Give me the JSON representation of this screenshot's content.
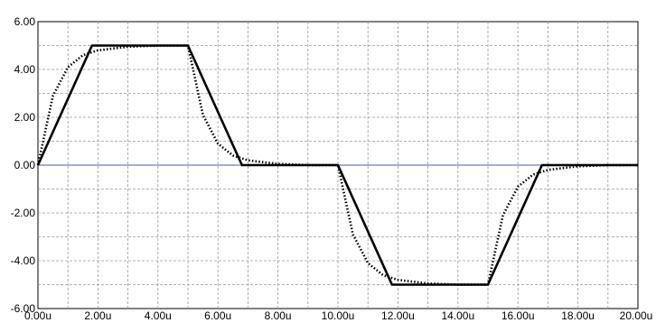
{
  "chart_data": {
    "type": "line",
    "title": "",
    "xlabel": "",
    "ylabel": "",
    "x_ticks": [
      "0.00u",
      "2.00u",
      "4.00u",
      "6.00u",
      "8.00u",
      "10.00u",
      "12.00u",
      "14.00u",
      "16.00u",
      "18.00u",
      "20.00u"
    ],
    "y_ticks": [
      "6.00",
      "4.00",
      "2.00",
      "0.00",
      "-2.00",
      "-4.00",
      "-6.00"
    ],
    "xlim": [
      0,
      20
    ],
    "ylim": [
      -6,
      6
    ],
    "x_unit": "u",
    "grid": true,
    "zero_line_color": "#4a5ab8",
    "series": [
      {
        "style": "solid",
        "color": "#000000",
        "x": [
          0,
          1.8,
          5.0,
          6.8,
          10.0,
          11.8,
          15.0,
          16.8,
          20.0
        ],
        "y": [
          0,
          5,
          5,
          0,
          0,
          -5,
          -5,
          0,
          0
        ]
      },
      {
        "style": "dotted",
        "color": "#000000",
        "x": [
          0,
          0.5,
          1.0,
          1.5,
          2.0,
          3.0,
          4.0,
          5.0,
          5.5,
          6.0,
          6.5,
          7.0,
          8.0,
          9.0,
          10.0,
          10.5,
          11.0,
          11.5,
          12.0,
          13.0,
          14.0,
          15.0,
          15.5,
          16.0,
          16.5,
          17.0,
          18.0,
          19.0,
          20.0
        ],
        "y": [
          0,
          2.9,
          4.1,
          4.6,
          4.8,
          4.95,
          5.0,
          5.0,
          2.1,
          0.9,
          0.4,
          0.2,
          0.05,
          0.0,
          0.0,
          -2.9,
          -4.1,
          -4.6,
          -4.8,
          -4.95,
          -5.0,
          -5.0,
          -2.1,
          -0.9,
          -0.4,
          -0.2,
          -0.05,
          0.0,
          0.0
        ]
      }
    ]
  }
}
